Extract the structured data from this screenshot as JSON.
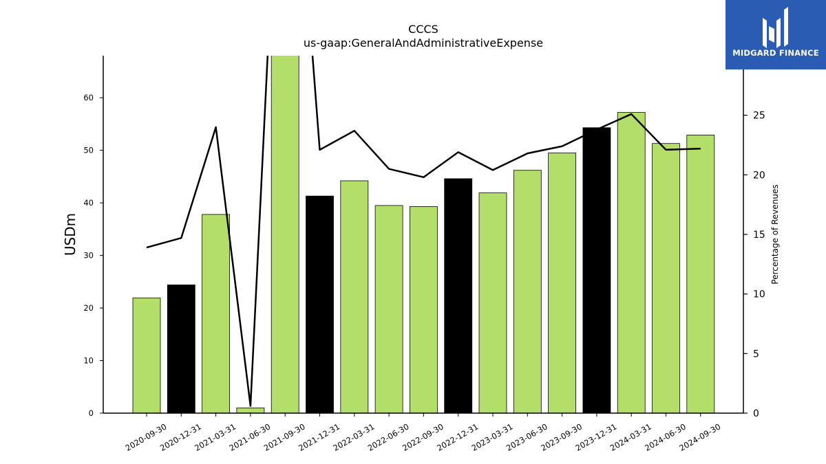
{
  "brand": {
    "logo_text": "MIDGARD FINANCE",
    "bg_color": "#2b5cb3",
    "icon": "midgard-m-logo-icon"
  },
  "chart_data": {
    "type": "bar",
    "title": "CCCS",
    "subtitle": "us-gaap:GeneralAndAdministrativeExpense",
    "ylabel": "USDm",
    "y2label": "Percentage of Revenues",
    "categories": [
      "2020-09-30",
      "2020-12-31",
      "2021-03-31",
      "2021-06-30",
      "2021-09-30",
      "2021-12-31",
      "2022-03-31",
      "2022-06-30",
      "2022-09-30",
      "2022-12-31",
      "2023-03-31",
      "2023-06-30",
      "2023-09-30",
      "2023-12-31",
      "2024-03-31",
      "2024-06-30",
      "2024-09-30"
    ],
    "values": [
      21.9,
      24.4,
      37.8,
      1.0,
      68.5,
      41.3,
      44.2,
      39.5,
      39.3,
      44.6,
      41.9,
      46.2,
      49.5,
      54.3,
      57.2,
      51.3,
      52.9
    ],
    "bar_colors": [
      "#b3de69",
      "#000000",
      "#b3de69",
      "#b3de69",
      "#b3de69",
      "#000000",
      "#b3de69",
      "#b3de69",
      "#b3de69",
      "#000000",
      "#b3de69",
      "#b3de69",
      "#b3de69",
      "#000000",
      "#b3de69",
      "#b3de69",
      "#b3de69"
    ],
    "ylim": [
      0,
      68
    ],
    "yticks": [
      0,
      10,
      20,
      30,
      40,
      50,
      60
    ],
    "line_series": {
      "axis": "right",
      "values": [
        13.9,
        14.7,
        24.0,
        0.6,
        60.0,
        22.1,
        23.7,
        20.5,
        19.8,
        21.9,
        20.4,
        21.8,
        22.4,
        23.8,
        25.1,
        22.1,
        22.2
      ]
    },
    "y2lim": [
      0,
      30
    ],
    "y2ticks": [
      0,
      5,
      10,
      15,
      20,
      25
    ],
    "grid": false
  }
}
